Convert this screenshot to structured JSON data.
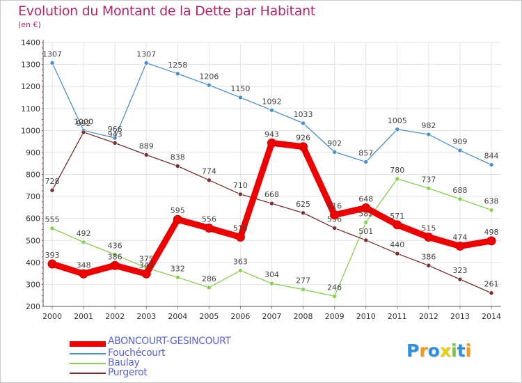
{
  "header": {
    "title": "Evolution du Montant de la Dette par Habitant",
    "unit": "(en €)"
  },
  "chart_data": {
    "type": "line",
    "title": "Evolution du Montant de la Dette par Habitant",
    "ylabel": "(en €)",
    "xlabel": "",
    "ylim": [
      200,
      1400
    ],
    "yticks": [
      "200",
      "300",
      "400",
      "500",
      "600",
      "700",
      "800",
      "900",
      "1000",
      "1100",
      "1200",
      "1300",
      "1400"
    ],
    "categories": [
      "2000",
      "2001",
      "2002",
      "2003",
      "2004",
      "2005",
      "2006",
      "2007",
      "2008",
      "2009",
      "2010",
      "2011",
      "2012",
      "2013",
      "2014"
    ],
    "grid": true,
    "legend_position": "bottom-left",
    "series": [
      {
        "name": "Fouchécourt",
        "color": "#4a90d0",
        "values": [
          1307,
          1000,
          966,
          1307,
          1258,
          1206,
          1150,
          1092,
          1033,
          902,
          857,
          1005,
          982,
          909,
          844
        ],
        "labels": [
          "1307",
          "1000",
          "966",
          "1307",
          "1258",
          "1206",
          "1150",
          "1092",
          "1033",
          "902",
          "857",
          "1005",
          "982",
          "909",
          "844"
        ]
      },
      {
        "name": "Baulay",
        "color": "#88d050",
        "values": [
          555,
          492,
          436,
          375,
          332,
          286,
          363,
          304,
          277,
          246,
          582,
          780,
          737,
          688,
          638
        ],
        "labels": [
          "555",
          "492",
          "436",
          "375",
          "332",
          "286",
          "363",
          "304",
          "277",
          "246",
          "582",
          "780",
          "737",
          "688",
          "638"
        ]
      },
      {
        "name": "Purgerot",
        "color": "#7a2e2e",
        "values": [
          728,
          992,
          943,
          889,
          838,
          774,
          710,
          668,
          625,
          556,
          501,
          440,
          386,
          323,
          261
        ],
        "labels": [
          "728",
          "992",
          "943",
          "889",
          "838",
          "774",
          "710",
          "668",
          "625",
          "556",
          "501",
          "440",
          "386",
          "323",
          "261"
        ]
      },
      {
        "name": "ABONCOURT-GESINCOURT",
        "color": "#ee0000",
        "values": [
          393,
          348,
          386,
          348,
          595,
          556,
          515,
          943,
          926,
          616,
          648,
          571,
          515,
          474,
          498
        ],
        "labels": [
          "393",
          "348",
          "386",
          "348",
          "595",
          "556",
          "515",
          "943",
          "926",
          "616",
          "648",
          "571",
          "515",
          "474",
          "498"
        ]
      }
    ]
  },
  "legend": {
    "items": [
      {
        "name": "ABONCOURT-GESINCOURT",
        "color": "#ee0000"
      },
      {
        "name": "Fouchécourt",
        "color": "#4a90d0"
      },
      {
        "name": "Baulay",
        "color": "#88d050"
      },
      {
        "name": "Purgerot",
        "color": "#7a2e2e"
      }
    ]
  },
  "logo": {
    "text": "Proxiti",
    "colors": [
      "#2f8fd8",
      "#f39a1e",
      "#2f8fd8",
      "#e5ce10",
      "#7cc243",
      "#2f8fd8",
      "#f39a1e"
    ]
  }
}
